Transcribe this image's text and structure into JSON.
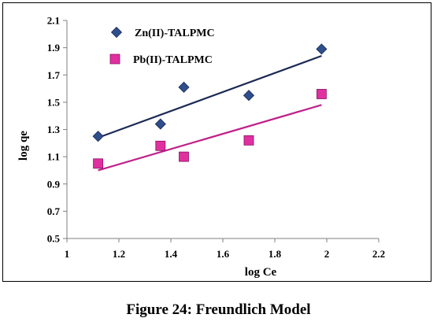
{
  "chart_data": {
    "type": "scatter",
    "xlabel": "log Ce",
    "ylabel": "log qe",
    "xlim": [
      1,
      2.2
    ],
    "ylim": [
      0.5,
      2.1
    ],
    "xticks": [
      "1",
      "1.2",
      "1.4",
      "1.6",
      "1.8",
      "2",
      "2.2"
    ],
    "yticks": [
      "0.5",
      "0.7",
      "0.9",
      "1.1",
      "1.3",
      "1.5",
      "1.7",
      "1.9",
      "2.1"
    ],
    "grid": false,
    "legend_position": "top-left",
    "series": [
      {
        "name": "Zn(II)-TALPMC",
        "marker": "diamond",
        "color": "#2e4f8c",
        "trend_color": "#1b2a55",
        "x": [
          1.12,
          1.36,
          1.45,
          1.7,
          1.98
        ],
        "y": [
          1.25,
          1.34,
          1.61,
          1.55,
          1.89
        ],
        "trendline": [
          [
            1.12,
            1.24
          ],
          [
            1.98,
            1.84
          ]
        ]
      },
      {
        "name": "Pb(II)-TALPMC",
        "marker": "square",
        "color": "#e030a0",
        "trend_color": "#c0208a",
        "x": [
          1.12,
          1.36,
          1.45,
          1.7,
          1.98
        ],
        "y": [
          1.05,
          1.18,
          1.1,
          1.22,
          1.56
        ],
        "trendline": [
          [
            1.12,
            1.0
          ],
          [
            1.98,
            1.48
          ]
        ]
      }
    ]
  },
  "caption": "Figure 24: Freundlich Model"
}
